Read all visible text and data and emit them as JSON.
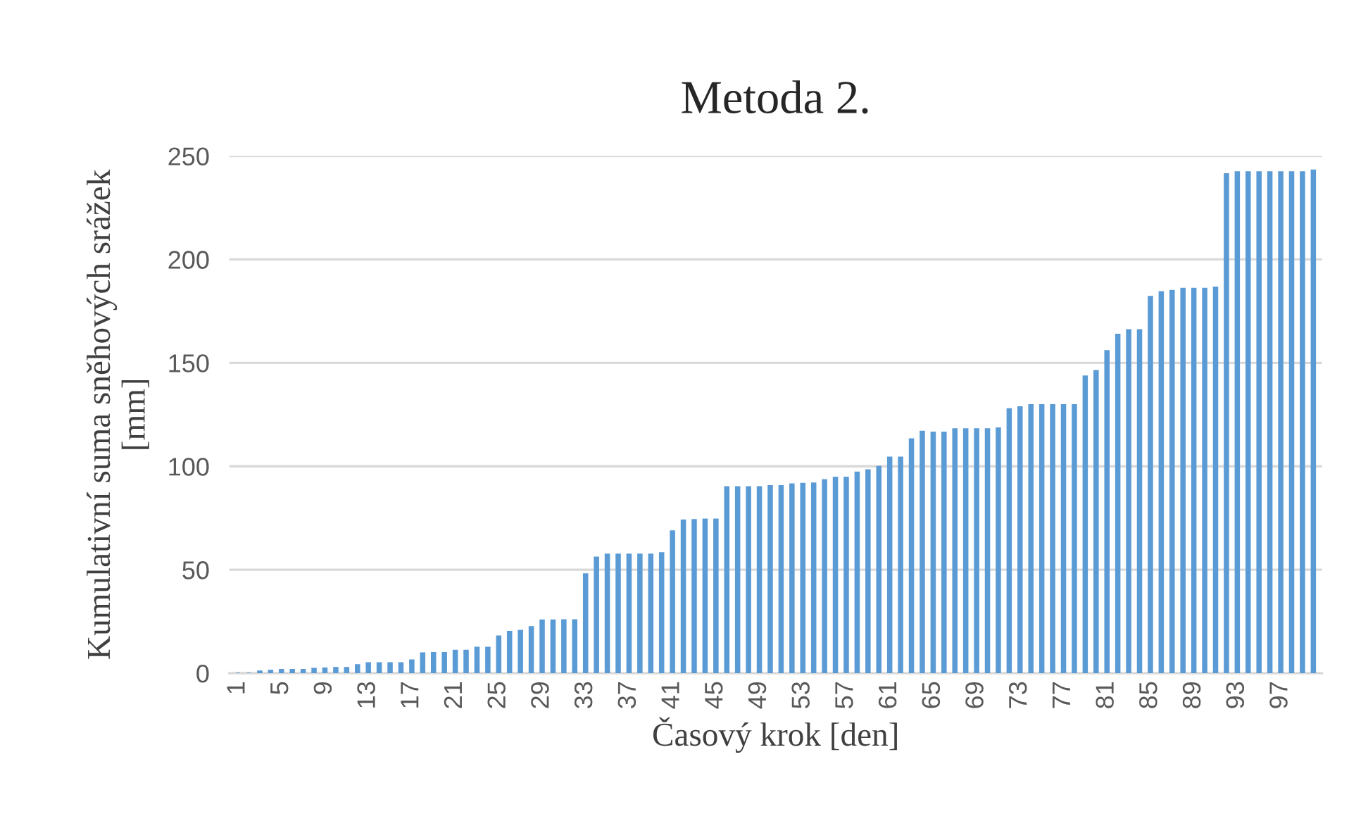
{
  "chart_data": {
    "type": "bar",
    "title": "Metoda 2.",
    "xlabel": "Časový krok [den]",
    "ylabel": "Kumulativní suma sněhových srážek\n[mm]",
    "categories": [
      "1",
      null,
      null,
      null,
      "5",
      null,
      null,
      null,
      "9",
      null,
      null,
      null,
      "13",
      null,
      null,
      null,
      "17",
      null,
      null,
      null,
      "21",
      null,
      null,
      null,
      "25",
      null,
      null,
      null,
      "29",
      null,
      null,
      null,
      "33",
      null,
      null,
      null,
      "37",
      null,
      null,
      null,
      "41",
      null,
      null,
      null,
      "45",
      null,
      null,
      null,
      "49",
      null,
      null,
      null,
      "53",
      null,
      null,
      null,
      "57",
      null,
      null,
      null,
      "61",
      null,
      null,
      null,
      "65",
      null,
      null,
      null,
      "69",
      null,
      null,
      null,
      "73",
      null,
      null,
      null,
      "77",
      null,
      null,
      null,
      "81",
      null,
      null,
      null,
      "85",
      null,
      null,
      null,
      "89",
      null,
      null,
      null,
      "93",
      null,
      null,
      null,
      "97",
      null,
      null,
      null
    ],
    "values": [
      0,
      0,
      1,
      1.4,
      1.8,
      1.8,
      1.8,
      2.3,
      2.5,
      2.7,
      2.7,
      4.1,
      5,
      5,
      5,
      5,
      6.4,
      9.8,
      10,
      10,
      11.1,
      11.1,
      12.5,
      12.5,
      18,
      20.2,
      20.7,
      22.5,
      25.7,
      25.7,
      25.8,
      25.8,
      48,
      56.1,
      57.5,
      57.5,
      57.5,
      57.5,
      57.5,
      58.2,
      68.8,
      74,
      74.2,
      74.5,
      74.5,
      90.1,
      90.1,
      90.1,
      90.1,
      90.6,
      90.6,
      91.5,
      91.7,
      91.9,
      93.5,
      94.7,
      94.7,
      97.2,
      98.3,
      99.9,
      104.4,
      104.4,
      113.3,
      116.9,
      116.5,
      116.5,
      118.1,
      118.1,
      118.1,
      118.1,
      118.5,
      127.8,
      128.7,
      129.8,
      129.8,
      129.8,
      129.8,
      129.8,
      143.6,
      146.3,
      155.9,
      163.8,
      166,
      166,
      182.1,
      184.4,
      185,
      186,
      186,
      186,
      186.6,
      241.4,
      242.3,
      242.3,
      242.3,
      242.3,
      242.3,
      242.3,
      242.3,
      243.2
    ],
    "color": "#5b9bd5",
    "ylim": [
      0,
      250
    ],
    "yticks": [
      0,
      50,
      100,
      150,
      200,
      250
    ],
    "grid": "y"
  }
}
